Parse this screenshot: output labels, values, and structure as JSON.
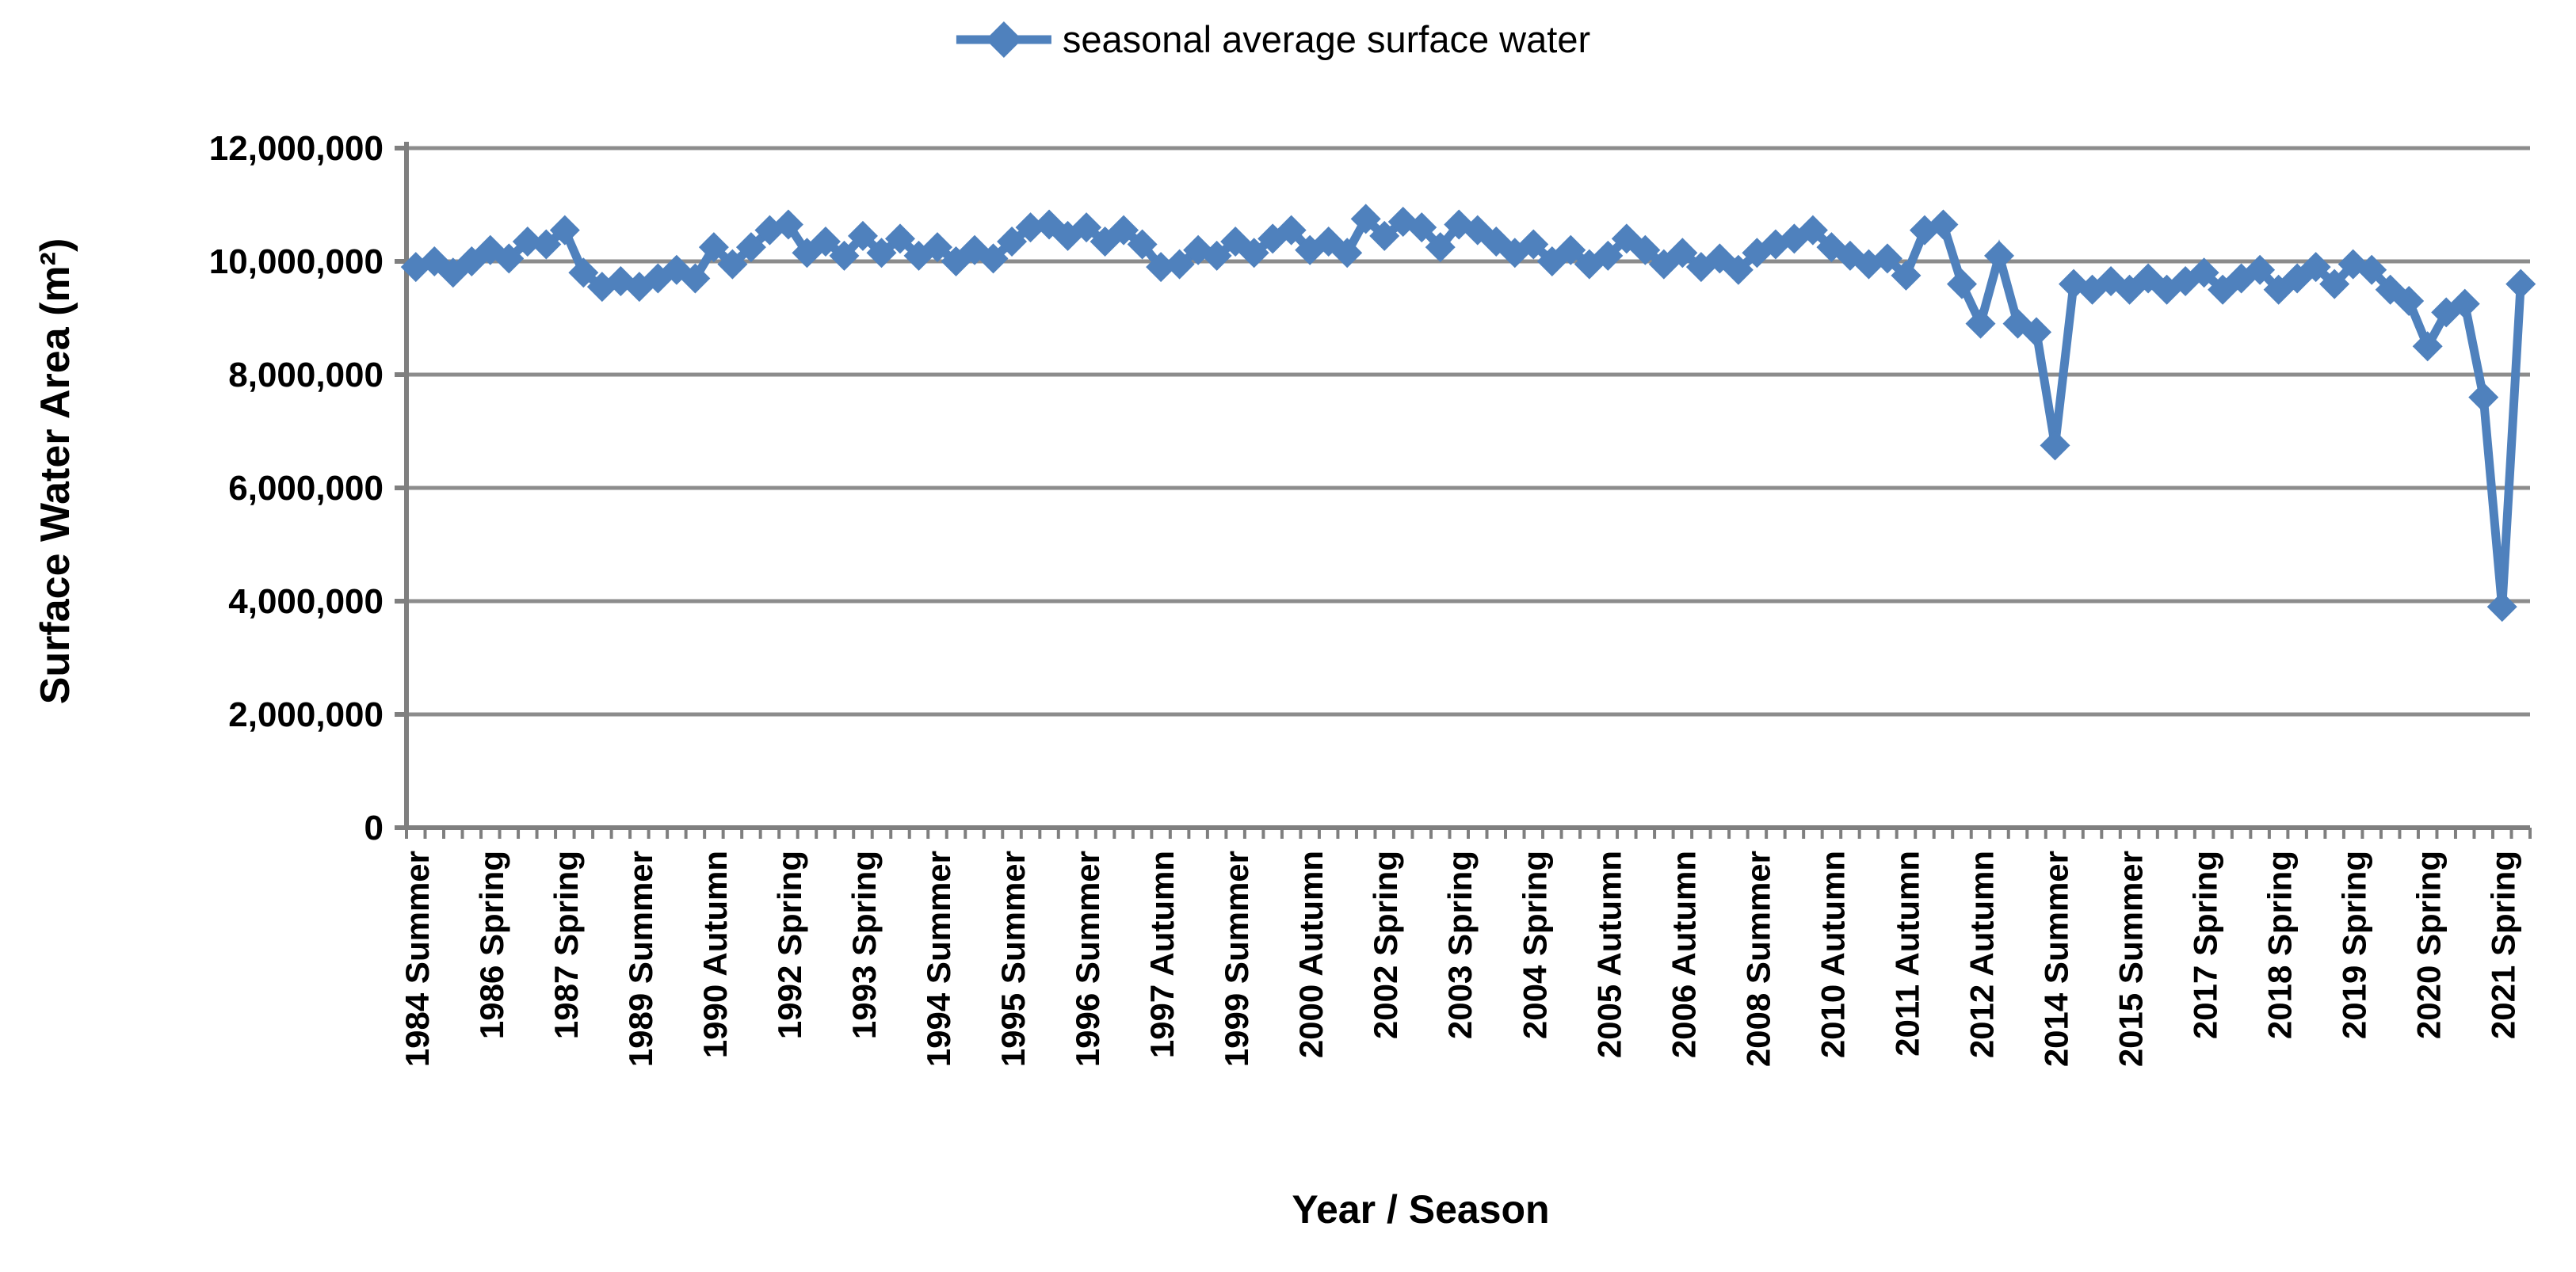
{
  "chart_data": {
    "type": "line",
    "title": "",
    "xlabel": "Year / Season",
    "ylabel": "Surface Water Area (m²)",
    "ylim": [
      0,
      12000000
    ],
    "yticks": [
      0,
      2000000,
      4000000,
      6000000,
      8000000,
      10000000,
      12000000
    ],
    "grid": "horizontal-only",
    "legend_position": "top-center",
    "x_tick_interval": 4,
    "x_tick_labels": [
      "1984 Summer",
      "1986 Spring",
      "1987 Spring",
      "1989 Summer",
      "1990 Autumn",
      "1992 Spring",
      "1993 Spring",
      "1994 Summer",
      "1995 Summer",
      "1996 Summer",
      "1997 Autumn",
      "1999 Summer",
      "2000 Autumn",
      "2002 Spring",
      "2003 Spring",
      "2004 Spring",
      "2005 Autumn",
      "2006 Autumn",
      "2008 Summer",
      "2010 Autumn",
      "2011 Autumn",
      "2012 Autumn",
      "2014 Summer",
      "2015 Summer",
      "2017 Spring",
      "2018 Spring",
      "2019 Spring",
      "2020 Spring",
      "2021 Spring"
    ],
    "series": [
      {
        "name": "seasonal average surface water",
        "color": "#4F81BD",
        "marker": "diamond",
        "values": [
          9900000,
          10000000,
          9800000,
          10000000,
          10200000,
          10050000,
          10350000,
          10300000,
          10550000,
          9800000,
          9550000,
          9650000,
          9550000,
          9700000,
          9850000,
          9700000,
          10250000,
          9950000,
          10250000,
          10550000,
          10650000,
          10150000,
          10350000,
          10100000,
          10450000,
          10150000,
          10400000,
          10100000,
          10250000,
          10000000,
          10200000,
          10050000,
          10350000,
          10600000,
          10650000,
          10450000,
          10600000,
          10350000,
          10550000,
          10300000,
          9900000,
          9950000,
          10200000,
          10100000,
          10350000,
          10150000,
          10400000,
          10550000,
          10200000,
          10350000,
          10150000,
          10750000,
          10450000,
          10700000,
          10600000,
          10250000,
          10650000,
          10550000,
          10350000,
          10150000,
          10300000,
          10000000,
          10200000,
          9950000,
          10100000,
          10400000,
          10200000,
          9950000,
          10150000,
          9900000,
          10050000,
          9850000,
          10150000,
          10300000,
          10400000,
          10550000,
          10250000,
          10100000,
          9950000,
          10050000,
          9750000,
          10550000,
          10650000,
          9600000,
          8900000,
          10100000,
          8900000,
          8750000,
          6750000,
          9600000,
          9500000,
          9650000,
          9500000,
          9700000,
          9500000,
          9650000,
          9800000,
          9500000,
          9700000,
          9850000,
          9500000,
          9700000,
          9900000,
          9600000,
          9950000,
          9850000,
          9500000,
          9300000,
          8500000,
          9100000,
          9250000,
          7600000,
          3900000,
          9600000
        ]
      }
    ]
  },
  "colors": {
    "series": "#4F81BD",
    "gridline": "#8C8C8C",
    "axis": "#7F7F7F",
    "text": "#000000"
  }
}
